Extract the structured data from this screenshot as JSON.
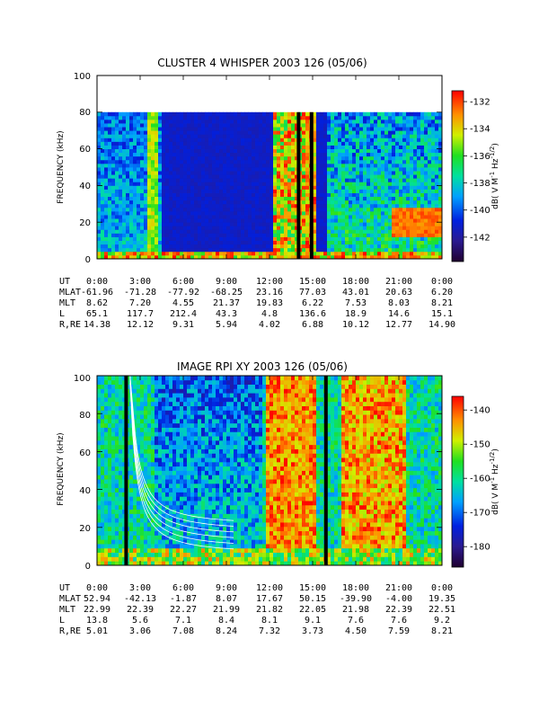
{
  "chart_data": [
    {
      "type": "heatmap",
      "title": "CLUSTER 4 WHISPER 2003 126 (05/06)",
      "ylabel": "FREQUENCY (kHz)",
      "ylim": [
        0,
        100
      ],
      "yticks": [
        "0",
        "20",
        "40",
        "60",
        "80",
        "100"
      ],
      "data_ymax": 80,
      "x_hours": [
        0,
        3,
        6,
        9,
        12,
        15,
        18,
        21,
        24
      ],
      "colorbar": {
        "label": "dB( V M^-1 Hz^-1/2 )",
        "label_parts": [
          "dB( V M",
          "-1",
          " Hz",
          "-1/2",
          ")"
        ],
        "range": [
          -143.8,
          -131.2
        ],
        "ticks": [
          "-132",
          "-134",
          "-136",
          "-138",
          "-140",
          "-142"
        ],
        "tick_values": [
          -132,
          -134,
          -136,
          -138,
          -140,
          -142
        ]
      },
      "ephemeris": {
        "rows": [
          {
            "label": "UT",
            "values": [
              "0:00",
              "3:00",
              "6:00",
              "9:00",
              "12:00",
              "15:00",
              "18:00",
              "21:00",
              "0:00"
            ]
          },
          {
            "label": "MLAT",
            "values": [
              "-61.96",
              "-71.28",
              "-77.92",
              "-68.25",
              "23.16",
              "77.03",
              "43.01",
              "20.63",
              "6.20"
            ]
          },
          {
            "label": "MLT",
            "values": [
              "8.62",
              "7.20",
              "4.55",
              "21.37",
              "19.83",
              "6.22",
              "7.53",
              "8.03",
              "8.21"
            ]
          },
          {
            "label": "L",
            "values": [
              "65.1",
              "117.7",
              "212.4",
              "43.3",
              "4.8",
              "136.6",
              "18.9",
              "14.6",
              "15.1"
            ]
          },
          {
            "label": "R,RE",
            "values": [
              "14.38",
              "12.12",
              "9.31",
              "5.94",
              "4.02",
              "6.88",
              "10.12",
              "12.77",
              "14.90"
            ]
          }
        ]
      }
    },
    {
      "type": "heatmap",
      "title": "IMAGE RPI XY 2003 126 (05/06)",
      "ylabel": "FREQUENCY (kHz)",
      "ylim": [
        0,
        100
      ],
      "yticks": [
        "0",
        "20",
        "40",
        "60",
        "80",
        "100"
      ],
      "x_hours": [
        0,
        3,
        6,
        9,
        12,
        15,
        18,
        21,
        24
      ],
      "colorbar": {
        "label": "dB( V M^-1 Hz^-1/2 )",
        "label_parts": [
          "dB( V M",
          "-1",
          " Hz",
          "-1/2",
          ")"
        ],
        "range": [
          -186,
          -136
        ],
        "ticks": [
          "-140",
          "-150",
          "-160",
          "-170",
          "-180"
        ],
        "tick_values": [
          -140,
          -150,
          -160,
          -170,
          -180
        ]
      },
      "ephemeris": {
        "rows": [
          {
            "label": "UT",
            "values": [
              "0:00",
              "3:00",
              "6:00",
              "9:00",
              "12:00",
              "15:00",
              "18:00",
              "21:00",
              "0:00"
            ]
          },
          {
            "label": "MLAT",
            "values": [
              "52.94",
              "-42.13",
              "-1.87",
              "8.07",
              "17.67",
              "50.15",
              "-39.90",
              "-4.00",
              "19.35"
            ]
          },
          {
            "label": "MLT",
            "values": [
              "22.99",
              "22.39",
              "22.27",
              "21.99",
              "21.82",
              "22.05",
              "21.98",
              "22.39",
              "22.51"
            ]
          },
          {
            "label": "L",
            "values": [
              "13.8",
              "5.6",
              "7.1",
              "8.4",
              "8.1",
              "9.1",
              "7.6",
              "7.6",
              "9.2"
            ]
          },
          {
            "label": "R,RE",
            "values": [
              "5.01",
              "3.06",
              "7.08",
              "8.24",
              "7.32",
              "3.73",
              "4.50",
              "7.59",
              "8.21"
            ]
          }
        ]
      }
    }
  ]
}
